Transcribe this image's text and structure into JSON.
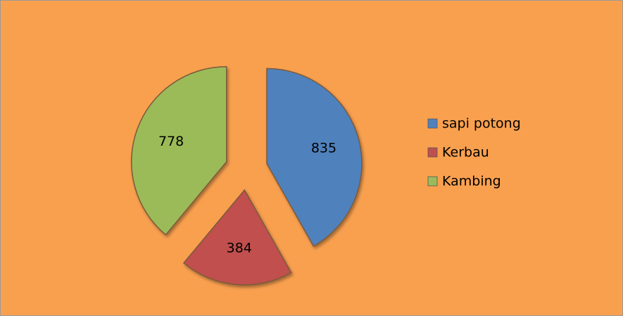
{
  "chart_data": {
    "type": "pie",
    "categories": [
      "sapi potong",
      "Kerbau",
      "Kambing"
    ],
    "values": [
      835,
      384,
      778
    ],
    "colors": [
      "#4f81bd",
      "#c0504d",
      "#9bbb59"
    ],
    "legend": "right"
  }
}
